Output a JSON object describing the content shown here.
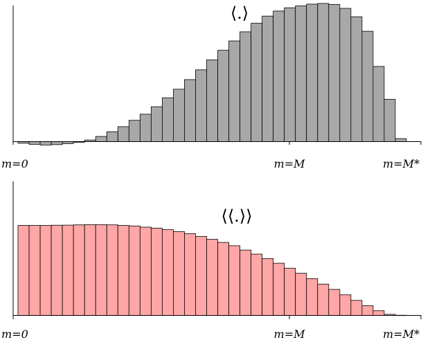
{
  "chart_data": [
    {
      "type": "bar",
      "title": "⟨.⟩",
      "color": "#a8a8a8",
      "axis_labels": [
        "m=0",
        "m=M",
        "m=M*"
      ],
      "ylim": [
        -3,
        100
      ],
      "values": [
        -1.2,
        -2,
        -2.5,
        -2.2,
        -1.5,
        -0.5,
        1.2,
        3.8,
        7.3,
        11,
        15.7,
        20.2,
        25.7,
        32.3,
        38.6,
        45.7,
        52.9,
        60.2,
        67.3,
        74.2,
        80.9,
        87.2,
        92.5,
        96.2,
        98.6,
        100,
        101.3,
        101.8,
        101.1,
        98.2,
        92,
        81.3,
        55.4,
        31.2,
        2.2
      ]
    },
    {
      "type": "bar",
      "title": "⟨⟨.⟩⟩",
      "color": "#ffa6a6",
      "axis_labels": [
        "m=0",
        "m=M",
        "m=M*"
      ],
      "ylim": [
        0,
        100
      ],
      "values": [
        100,
        100,
        100,
        100.2,
        100.3,
        100.6,
        100.8,
        100.8,
        100.6,
        100,
        99.4,
        98.1,
        96.9,
        95.3,
        93.1,
        90.9,
        87.7,
        84.6,
        81.1,
        77.4,
        72.6,
        68.1,
        63.2,
        58,
        52.5,
        46.8,
        40.9,
        34.8,
        28.9,
        22.9,
        16.7,
        10.8,
        5.2,
        1.2,
        0.2
      ]
    }
  ]
}
